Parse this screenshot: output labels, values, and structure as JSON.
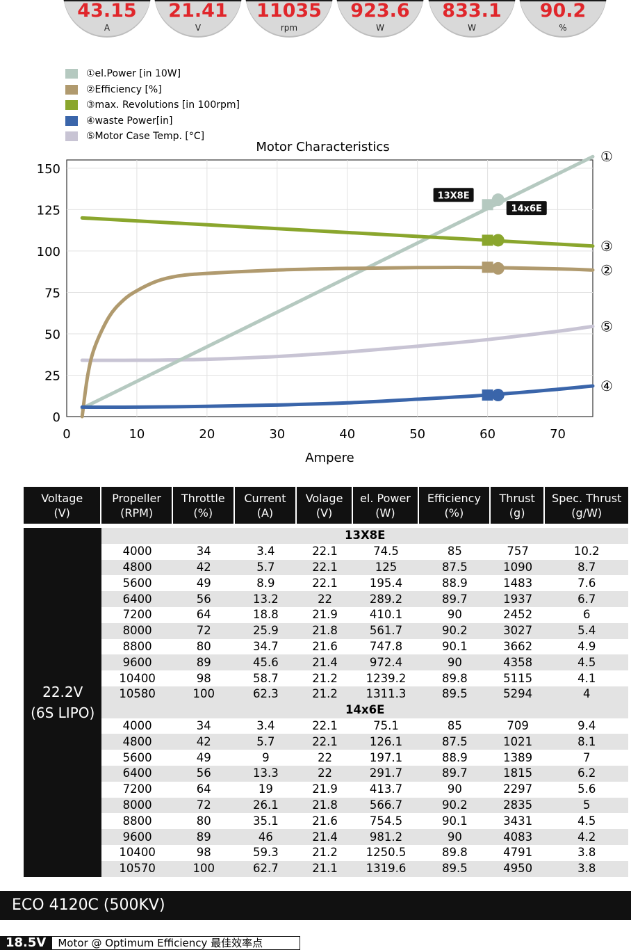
{
  "gauges": [
    {
      "value": "43.15",
      "unit": "A"
    },
    {
      "value": "21.41",
      "unit": "V"
    },
    {
      "value": "11035",
      "unit": "rpm"
    },
    {
      "value": "923.6",
      "unit": "W"
    },
    {
      "value": "833.1",
      "unit": "W"
    },
    {
      "value": "90.2",
      "unit": "%"
    }
  ],
  "chart_data": {
    "type": "line",
    "title": "Motor Characteristics",
    "xlabel": "Ampere",
    "ylabel": "",
    "xlim": [
      0,
      75
    ],
    "ylim": [
      0,
      155
    ],
    "xticks": [
      0,
      10,
      20,
      30,
      40,
      50,
      60,
      70
    ],
    "yticks": [
      0,
      25,
      50,
      75,
      100,
      125,
      150
    ],
    "series": [
      {
        "name": "①el.Power [in 10W]",
        "marker": "①",
        "color": "#b5c9c0",
        "x": [
          2.2,
          75
        ],
        "y": [
          5,
          157
        ]
      },
      {
        "name": "②Efficiency [%]",
        "marker": "②",
        "color": "#b09a6e",
        "x": [
          2.2,
          3,
          4,
          6,
          8,
          10,
          13,
          16,
          20,
          30,
          40,
          50,
          60,
          70,
          75
        ],
        "y": [
          0,
          25,
          42,
          60,
          70,
          76,
          82,
          85,
          86.5,
          88.5,
          89.5,
          90,
          90,
          89.2,
          88.5
        ]
      },
      {
        "name": "③max. Revolutions [in 100rpm]",
        "marker": "③",
        "color": "#8aa62d",
        "x": [
          2.2,
          75
        ],
        "y": [
          120,
          103
        ]
      },
      {
        "name": "④waste Power[in]",
        "marker": "④",
        "color": "#3a65aa",
        "x": [
          2.2,
          10,
          20,
          30,
          40,
          50,
          60,
          70,
          75
        ],
        "y": [
          5.7,
          5.7,
          6.2,
          7,
          8.3,
          10.5,
          13,
          16.5,
          18.5
        ]
      },
      {
        "name": "⑤Motor Case Temp. [°C]",
        "marker": "⑤",
        "color": "#c8c4d4",
        "x": [
          2.2,
          10,
          20,
          30,
          40,
          50,
          60,
          70,
          75
        ],
        "y": [
          34,
          34,
          34.6,
          36.3,
          39,
          42.5,
          46.5,
          51.5,
          54.5
        ]
      }
    ],
    "points": [
      {
        "label": "13X8E",
        "x": 60,
        "shape": "square",
        "values": {
          "el_power": 128,
          "efficiency": 90.2,
          "revolutions": 106.5,
          "waste": 13
        }
      },
      {
        "label": "14x6E",
        "x": 61.5,
        "shape": "circle",
        "values": {
          "el_power": 131,
          "efficiency": 89.5,
          "revolutions": 106.5,
          "waste": 13
        }
      }
    ]
  },
  "table": {
    "headers": [
      [
        "Voltage",
        "(V)"
      ],
      [
        "Propeller",
        "(RPM)"
      ],
      [
        "Throttle",
        "(%)"
      ],
      [
        "Current",
        "(A)"
      ],
      [
        "Volage",
        "(V)"
      ],
      [
        "el. Power",
        "(W)"
      ],
      [
        "Efficiency",
        "(%)"
      ],
      [
        "Thrust",
        "(g)"
      ],
      [
        "Spec. Thrust",
        "(g/W)"
      ]
    ],
    "voltage": [
      "22.2V",
      "(6S LIPO)"
    ],
    "groups": [
      {
        "name": "13X8E",
        "rows": [
          [
            "4000",
            "34",
            "3.4",
            "22.1",
            "74.5",
            "85",
            "757",
            "10.2"
          ],
          [
            "4800",
            "42",
            "5.7",
            "22.1",
            "125",
            "87.5",
            "1090",
            "8.7"
          ],
          [
            "5600",
            "49",
            "8.9",
            "22.1",
            "195.4",
            "88.9",
            "1483",
            "7.6"
          ],
          [
            "6400",
            "56",
            "13.2",
            "22",
            "289.2",
            "89.7",
            "1937",
            "6.7"
          ],
          [
            "7200",
            "64",
            "18.8",
            "21.9",
            "410.1",
            "90",
            "2452",
            "6"
          ],
          [
            "8000",
            "72",
            "25.9",
            "21.8",
            "561.7",
            "90.2",
            "3027",
            "5.4"
          ],
          [
            "8800",
            "80",
            "34.7",
            "21.6",
            "747.8",
            "90.1",
            "3662",
            "4.9"
          ],
          [
            "9600",
            "89",
            "45.6",
            "21.4",
            "972.4",
            "90",
            "4358",
            "4.5"
          ],
          [
            "10400",
            "98",
            "58.7",
            "21.2",
            "1239.2",
            "89.8",
            "5115",
            "4.1"
          ],
          [
            "10580",
            "100",
            "62.3",
            "21.2",
            "1311.3",
            "89.5",
            "5294",
            "4"
          ]
        ]
      },
      {
        "name": "14x6E",
        "rows": [
          [
            "4000",
            "34",
            "3.4",
            "22.1",
            "75.1",
            "85",
            "709",
            "9.4"
          ],
          [
            "4800",
            "42",
            "5.7",
            "22.1",
            "126.1",
            "87.5",
            "1021",
            "8.1"
          ],
          [
            "5600",
            "49",
            "9",
            "22",
            "197.1",
            "88.9",
            "1389",
            "7"
          ],
          [
            "6400",
            "56",
            "13.3",
            "22",
            "291.7",
            "89.7",
            "1815",
            "6.2"
          ],
          [
            "7200",
            "64",
            "19",
            "21.9",
            "413.7",
            "90",
            "2297",
            "5.6"
          ],
          [
            "8000",
            "72",
            "26.1",
            "21.8",
            "566.7",
            "90.2",
            "2835",
            "5"
          ],
          [
            "8800",
            "80",
            "35.1",
            "21.6",
            "754.5",
            "90.1",
            "3431",
            "4.5"
          ],
          [
            "9600",
            "89",
            "46",
            "21.4",
            "981.2",
            "90",
            "4083",
            "4.2"
          ],
          [
            "10400",
            "98",
            "59.3",
            "21.2",
            "1250.5",
            "89.8",
            "4791",
            "3.8"
          ],
          [
            "10570",
            "100",
            "62.7",
            "21.1",
            "1319.6",
            "89.5",
            "4950",
            "3.8"
          ]
        ]
      }
    ]
  },
  "footer": {
    "title": "ECO 4120C (500KV)"
  },
  "bottom": {
    "tag": "18.5V",
    "text": "Motor @ Optimum Efficiency  最佳效率点"
  }
}
